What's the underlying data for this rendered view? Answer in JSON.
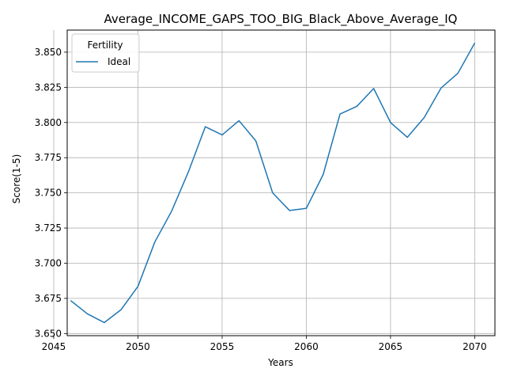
{
  "chart_data": {
    "type": "line",
    "title": "Average_INCOME_GAPS_TOO_BIG_Black_Above_Average_IQ",
    "xlabel": "Years",
    "ylabel": "Score(1-5)",
    "xlim": [
      2045.8,
      2071.2
    ],
    "ylim": [
      3.6485,
      3.8657
    ],
    "xticks": [
      2045,
      2050,
      2055,
      2060,
      2065,
      2070
    ],
    "yticks": [
      3.65,
      3.675,
      3.7,
      3.725,
      3.75,
      3.775,
      3.8,
      3.825,
      3.85
    ],
    "xtick_labels": [
      "2045",
      "2050",
      "2055",
      "2060",
      "2065",
      "2070"
    ],
    "ytick_labels": [
      "3.650",
      "3.675",
      "3.700",
      "3.725",
      "3.750",
      "3.775",
      "3.800",
      "3.825",
      "3.850"
    ],
    "grid": true,
    "legend": {
      "title": "Fertility",
      "placement": "top-left"
    },
    "series": [
      {
        "name": "Ideal",
        "color": "#1f77b4",
        "x": [
          2046,
          2047,
          2048,
          2049,
          2050,
          2051,
          2052,
          2053,
          2054,
          2055,
          2056,
          2057,
          2058,
          2059,
          2060,
          2061,
          2062,
          2063,
          2064,
          2065,
          2066,
          2067,
          2068,
          2069,
          2070
        ],
        "y": [
          3.6735,
          3.664,
          3.6578,
          3.667,
          3.6835,
          3.715,
          3.737,
          3.765,
          3.797,
          3.7912,
          3.8013,
          3.787,
          3.75,
          3.7375,
          3.739,
          3.763,
          3.806,
          3.8115,
          3.8242,
          3.8,
          3.7895,
          3.8035,
          3.8245,
          3.835,
          3.8565
        ]
      }
    ]
  }
}
